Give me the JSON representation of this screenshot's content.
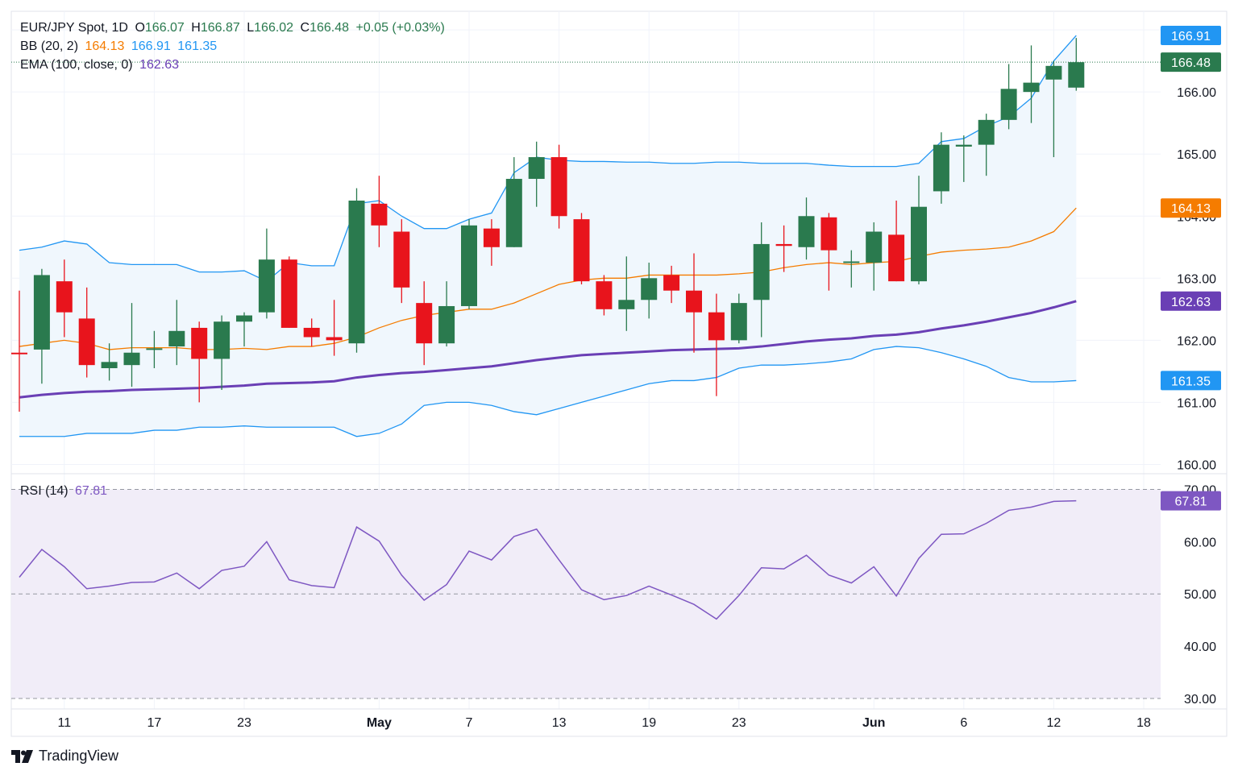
{
  "header": {
    "symbol": "EUR/JPY Spot, 1D",
    "open_label": "O",
    "open": "166.07",
    "high_label": "H",
    "high": "166.87",
    "low_label": "L",
    "low": "166.02",
    "close_label": "C",
    "close": "166.48",
    "change": "+0.05 (+0.03%)"
  },
  "bb_legend": {
    "label": "BB (20, 2)",
    "mid": "164.13",
    "upper": "166.91",
    "lower": "161.35"
  },
  "ema_legend": {
    "label": "EMA (100, close, 0)",
    "value": "162.63"
  },
  "rsi_legend": {
    "label": "RSI (14)",
    "value": "67.81"
  },
  "colors": {
    "up": "#2a7a4e",
    "down": "#e8141c",
    "bb_band": "#2196f3",
    "bb_mid": "#f57c00",
    "ema": "#6a3fb5",
    "rsi": "#7e57c2",
    "rsi_fill": "#f1edf8",
    "band_fill": "#f0f7fd"
  },
  "watermark": {
    "icon": "tradingview-logo-icon",
    "text": "TradingView"
  },
  "chart_data": {
    "type": "candlestick",
    "price_axis": {
      "ylim": [
        159.85,
        167.3
      ],
      "ticks": [
        "160.00",
        "161.00",
        "162.00",
        "163.00",
        "164.00",
        "165.00",
        "166.00",
        "167.00"
      ]
    },
    "rsi_axis": {
      "ylim": [
        28,
        73
      ],
      "ticks": [
        "30.00",
        "40.00",
        "50.00",
        "60.00",
        "70.00"
      ],
      "levels": [
        70,
        50,
        30
      ]
    },
    "x_labels": [
      {
        "text": "11",
        "x": 2
      },
      {
        "text": "17",
        "x": 6
      },
      {
        "text": "23",
        "x": 10
      },
      {
        "text": "May",
        "x": 16
      },
      {
        "text": "7",
        "x": 20
      },
      {
        "text": "13",
        "x": 24
      },
      {
        "text": "19",
        "x": 28
      },
      {
        "text": "23",
        "x": 32
      },
      {
        "text": "Jun",
        "x": 38
      },
      {
        "text": "6",
        "x": 42
      },
      {
        "text": "12",
        "x": 46
      },
      {
        "text": "18",
        "x": 50
      }
    ],
    "price_labels": [
      {
        "text": "166.91",
        "value": 166.91,
        "color": "#2196f3"
      },
      {
        "text": "166.48",
        "value": 166.48,
        "color": "#2a7a4e"
      },
      {
        "text": "164.13",
        "value": 164.13,
        "color": "#f57c00"
      },
      {
        "text": "162.63",
        "value": 162.63,
        "color": "#6a3fb5"
      },
      {
        "text": "161.35",
        "value": 161.35,
        "color": "#2196f3"
      }
    ],
    "rsi_label": {
      "text": "67.81",
      "value": 67.81,
      "color": "#7e57c2"
    },
    "candles": [
      {
        "x": 0,
        "o": 161.8,
        "h": 162.8,
        "l": 160.85,
        "c": 161.78
      },
      {
        "x": 1,
        "o": 161.85,
        "h": 163.15,
        "l": 161.3,
        "c": 163.05
      },
      {
        "x": 2,
        "o": 162.95,
        "h": 163.3,
        "l": 162.05,
        "c": 162.45
      },
      {
        "x": 3,
        "o": 162.35,
        "h": 162.85,
        "l": 161.4,
        "c": 161.6
      },
      {
        "x": 4,
        "o": 161.55,
        "h": 161.95,
        "l": 161.35,
        "c": 161.65
      },
      {
        "x": 5,
        "o": 161.6,
        "h": 162.6,
        "l": 161.25,
        "c": 161.8
      },
      {
        "x": 6,
        "o": 161.85,
        "h": 162.15,
        "l": 161.55,
        "c": 161.87
      },
      {
        "x": 7,
        "o": 161.9,
        "h": 162.65,
        "l": 161.6,
        "c": 162.15
      },
      {
        "x": 8,
        "o": 162.2,
        "h": 162.3,
        "l": 161.0,
        "c": 161.7
      },
      {
        "x": 9,
        "o": 161.7,
        "h": 162.4,
        "l": 161.2,
        "c": 162.3
      },
      {
        "x": 10,
        "o": 162.3,
        "h": 162.45,
        "l": 161.9,
        "c": 162.4
      },
      {
        "x": 11,
        "o": 162.45,
        "h": 163.8,
        "l": 162.35,
        "c": 163.3
      },
      {
        "x": 12,
        "o": 163.3,
        "h": 163.35,
        "l": 162.2,
        "c": 162.2
      },
      {
        "x": 13,
        "o": 162.2,
        "h": 162.35,
        "l": 161.9,
        "c": 162.05
      },
      {
        "x": 14,
        "o": 162.05,
        "h": 162.65,
        "l": 161.75,
        "c": 162.0
      },
      {
        "x": 15,
        "o": 161.95,
        "h": 164.45,
        "l": 161.8,
        "c": 164.25
      },
      {
        "x": 16,
        "o": 164.2,
        "h": 164.65,
        "l": 163.5,
        "c": 163.85
      },
      {
        "x": 17,
        "o": 163.75,
        "h": 163.95,
        "l": 162.6,
        "c": 162.85
      },
      {
        "x": 18,
        "o": 162.6,
        "h": 162.95,
        "l": 161.6,
        "c": 161.95
      },
      {
        "x": 19,
        "o": 161.95,
        "h": 162.95,
        "l": 161.9,
        "c": 162.55
      },
      {
        "x": 20,
        "o": 162.55,
        "h": 163.95,
        "l": 162.5,
        "c": 163.85
      },
      {
        "x": 21,
        "o": 163.8,
        "h": 163.95,
        "l": 163.2,
        "c": 163.5
      },
      {
        "x": 22,
        "o": 163.5,
        "h": 164.95,
        "l": 163.5,
        "c": 164.6
      },
      {
        "x": 23,
        "o": 164.6,
        "h": 165.2,
        "l": 164.15,
        "c": 164.95
      },
      {
        "x": 24,
        "o": 164.95,
        "h": 165.15,
        "l": 163.8,
        "c": 164.0
      },
      {
        "x": 25,
        "o": 163.95,
        "h": 164.05,
        "l": 162.9,
        "c": 162.95
      },
      {
        "x": 26,
        "o": 162.95,
        "h": 163.05,
        "l": 162.4,
        "c": 162.5
      },
      {
        "x": 27,
        "o": 162.5,
        "h": 163.35,
        "l": 162.15,
        "c": 162.65
      },
      {
        "x": 28,
        "o": 162.65,
        "h": 163.25,
        "l": 162.35,
        "c": 163.0
      },
      {
        "x": 29,
        "o": 163.05,
        "h": 163.2,
        "l": 162.6,
        "c": 162.8
      },
      {
        "x": 30,
        "o": 162.8,
        "h": 163.4,
        "l": 161.8,
        "c": 162.45
      },
      {
        "x": 31,
        "o": 162.45,
        "h": 162.75,
        "l": 161.1,
        "c": 162.0
      },
      {
        "x": 32,
        "o": 162.0,
        "h": 162.75,
        "l": 161.95,
        "c": 162.6
      },
      {
        "x": 33,
        "o": 162.65,
        "h": 163.9,
        "l": 162.05,
        "c": 163.55
      },
      {
        "x": 34,
        "o": 163.55,
        "h": 163.85,
        "l": 163.1,
        "c": 163.52
      },
      {
        "x": 35,
        "o": 163.5,
        "h": 164.3,
        "l": 163.3,
        "c": 164.0
      },
      {
        "x": 36,
        "o": 163.98,
        "h": 164.05,
        "l": 162.8,
        "c": 163.45
      },
      {
        "x": 37,
        "o": 163.25,
        "h": 163.45,
        "l": 162.85,
        "c": 163.27
      },
      {
        "x": 38,
        "o": 163.25,
        "h": 163.9,
        "l": 162.8,
        "c": 163.75
      },
      {
        "x": 39,
        "o": 163.7,
        "h": 164.25,
        "l": 162.95,
        "c": 162.95
      },
      {
        "x": 40,
        "o": 162.95,
        "h": 164.65,
        "l": 162.9,
        "c": 164.15
      },
      {
        "x": 41,
        "o": 164.4,
        "h": 165.35,
        "l": 164.2,
        "c": 165.15
      },
      {
        "x": 42,
        "o": 165.12,
        "h": 165.3,
        "l": 164.55,
        "c": 165.15
      },
      {
        "x": 43,
        "o": 165.15,
        "h": 165.65,
        "l": 164.65,
        "c": 165.55
      },
      {
        "x": 44,
        "o": 165.55,
        "h": 166.45,
        "l": 165.4,
        "c": 166.05
      },
      {
        "x": 45,
        "o": 166.0,
        "h": 166.75,
        "l": 165.5,
        "c": 166.15
      },
      {
        "x": 46,
        "o": 166.2,
        "h": 166.5,
        "l": 164.95,
        "c": 166.42
      },
      {
        "x": 47,
        "o": 166.07,
        "h": 166.87,
        "l": 166.02,
        "c": 166.48
      }
    ],
    "bb_upper": [
      163.45,
      163.5,
      163.6,
      163.55,
      163.25,
      163.22,
      163.22,
      163.22,
      163.1,
      163.1,
      163.12,
      162.95,
      163.25,
      163.2,
      163.2,
      164.2,
      164.25,
      164.0,
      163.8,
      163.8,
      163.95,
      164.05,
      164.7,
      164.95,
      164.9,
      164.88,
      164.88,
      164.87,
      164.87,
      164.85,
      164.85,
      164.87,
      164.87,
      164.85,
      164.85,
      164.85,
      164.82,
      164.8,
      164.8,
      164.8,
      164.85,
      165.2,
      165.25,
      165.45,
      165.6,
      165.9,
      166.5,
      166.91
    ],
    "bb_mid": [
      161.9,
      161.95,
      162.0,
      161.95,
      161.85,
      161.88,
      161.88,
      161.88,
      161.85,
      161.85,
      161.87,
      161.85,
      161.9,
      161.9,
      161.95,
      162.05,
      162.2,
      162.32,
      162.4,
      162.45,
      162.5,
      162.5,
      162.6,
      162.75,
      162.9,
      162.97,
      163.0,
      163.0,
      163.05,
      163.05,
      163.05,
      163.05,
      163.07,
      163.1,
      163.17,
      163.22,
      163.25,
      163.22,
      163.25,
      163.27,
      163.35,
      163.42,
      163.45,
      163.47,
      163.5,
      163.6,
      163.75,
      164.13
    ],
    "bb_lower": [
      160.45,
      160.45,
      160.45,
      160.5,
      160.5,
      160.5,
      160.55,
      160.55,
      160.6,
      160.6,
      160.62,
      160.6,
      160.6,
      160.6,
      160.6,
      160.45,
      160.5,
      160.65,
      160.95,
      161.0,
      161.0,
      160.95,
      160.85,
      160.8,
      160.9,
      161.0,
      161.1,
      161.2,
      161.3,
      161.35,
      161.35,
      161.4,
      161.55,
      161.6,
      161.6,
      161.62,
      161.65,
      161.7,
      161.85,
      161.9,
      161.88,
      161.8,
      161.7,
      161.58,
      161.4,
      161.33,
      161.33,
      161.35
    ],
    "ema": [
      161.08,
      161.12,
      161.15,
      161.17,
      161.18,
      161.2,
      161.21,
      161.22,
      161.23,
      161.25,
      161.27,
      161.3,
      161.31,
      161.32,
      161.34,
      161.4,
      161.44,
      161.47,
      161.49,
      161.52,
      161.55,
      161.58,
      161.63,
      161.68,
      161.72,
      161.76,
      161.78,
      161.8,
      161.82,
      161.84,
      161.85,
      161.86,
      161.87,
      161.9,
      161.94,
      161.98,
      162.01,
      162.03,
      162.07,
      162.09,
      162.13,
      162.19,
      162.24,
      162.3,
      162.37,
      162.44,
      162.53,
      162.63
    ],
    "rsi": [
      53.2,
      58.5,
      55.2,
      51.0,
      51.5,
      52.2,
      52.3,
      54.0,
      51.0,
      54.5,
      55.3,
      60.0,
      52.7,
      51.6,
      51.2,
      62.8,
      60.1,
      53.6,
      48.8,
      51.8,
      58.2,
      56.5,
      61.0,
      62.4,
      56.5,
      50.8,
      48.9,
      49.7,
      51.5,
      49.8,
      48.0,
      45.2,
      49.7,
      55.0,
      54.8,
      57.4,
      53.6,
      52.1,
      55.2,
      49.6,
      56.8,
      61.4,
      61.5,
      63.5,
      66.0,
      66.6,
      67.7,
      67.81
    ]
  }
}
